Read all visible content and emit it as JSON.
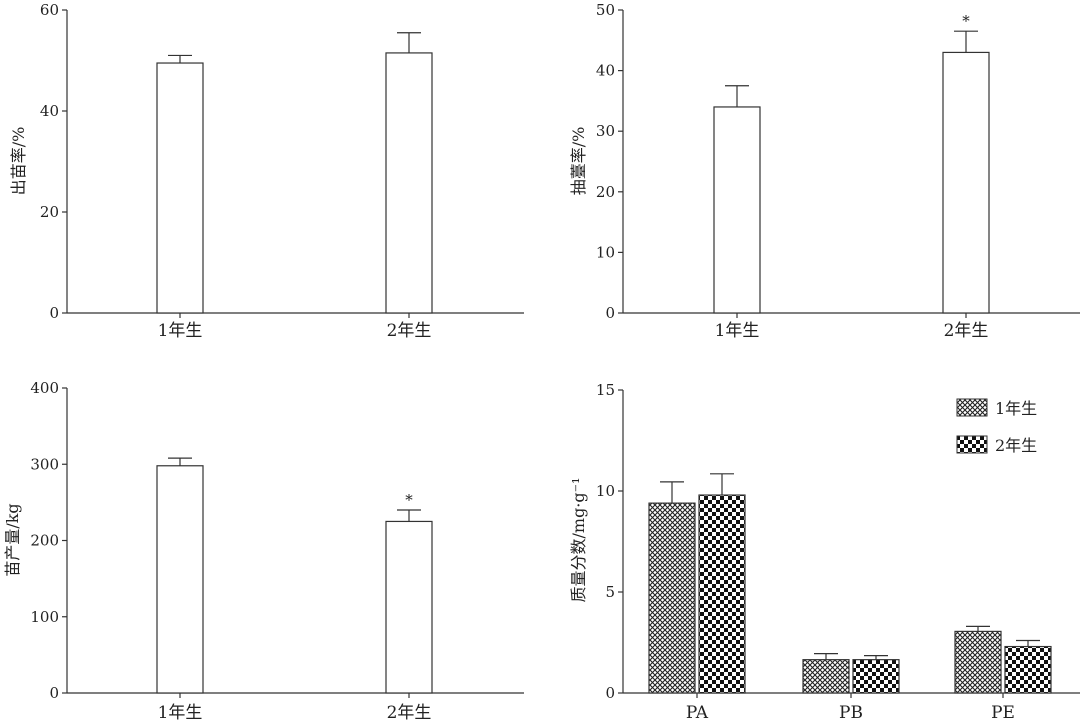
{
  "chart_data": [
    {
      "id": "emergence",
      "type": "bar",
      "ylabel": "出苗率/%",
      "categories": [
        "1年生",
        "2年生"
      ],
      "values": [
        49.5,
        51.5
      ],
      "errors": [
        1.5,
        4.0
      ],
      "significance": [
        "",
        ""
      ],
      "ylim": [
        0,
        60
      ],
      "yticks": [
        0,
        20,
        40,
        60
      ],
      "grid": false
    },
    {
      "id": "bolting",
      "type": "bar",
      "ylabel": "抽薹率/%",
      "categories": [
        "1年生",
        "2年生"
      ],
      "values": [
        34,
        43
      ],
      "errors": [
        3.5,
        3.5
      ],
      "significance": [
        "",
        "*"
      ],
      "ylim": [
        0,
        50
      ],
      "yticks": [
        0,
        10,
        20,
        30,
        40,
        50
      ],
      "grid": false
    },
    {
      "id": "seedling-yield",
      "type": "bar",
      "ylabel": "苗产量/kg",
      "categories": [
        "1年生",
        "2年生"
      ],
      "values": [
        298,
        225
      ],
      "errors": [
        10,
        15
      ],
      "significance": [
        "",
        "*"
      ],
      "ylim": [
        0,
        400
      ],
      "yticks": [
        0,
        100,
        200,
        300,
        400
      ],
      "grid": false
    },
    {
      "id": "mass-fraction",
      "type": "bar",
      "ylabel": "质量分数/mg·g⁻¹",
      "categories": [
        "PA",
        "PB",
        "PE"
      ],
      "series": [
        {
          "name": "1年生",
          "values": [
            9.4,
            1.65,
            3.05
          ],
          "errors": [
            1.05,
            0.3,
            0.25
          ]
        },
        {
          "name": "2年生",
          "values": [
            9.8,
            1.65,
            2.3
          ],
          "errors": [
            1.05,
            0.2,
            0.3
          ]
        }
      ],
      "ylim": [
        0,
        15
      ],
      "yticks": [
        0,
        5,
        10,
        15
      ],
      "legend": "top-right",
      "grid": false
    }
  ],
  "colors": {
    "axis": "#333333",
    "bar_stroke": "#333333",
    "bar_fill": "#ffffff",
    "hatch": "#222222"
  }
}
